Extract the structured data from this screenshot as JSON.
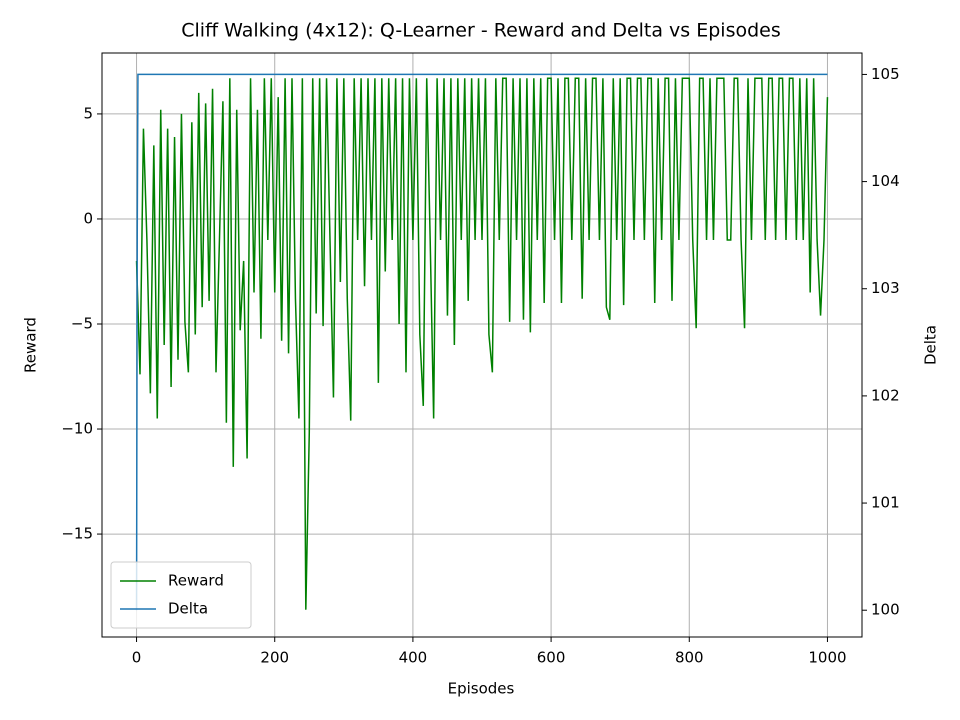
{
  "chart_data": {
    "type": "line",
    "title": "Cliff Walking (4x12): Q-Learner - Reward and Delta vs Episodes",
    "xlabel": "Episodes",
    "ylabel": "Reward",
    "y2label": "Delta",
    "xlim": [
      -50,
      1050
    ],
    "ylim": [
      -19.9,
      7.9
    ],
    "y2lim": [
      99.75,
      105.2
    ],
    "xticks": [
      0,
      200,
      400,
      600,
      800,
      1000
    ],
    "yticks": [
      {
        "value": -15,
        "label": "−15"
      },
      {
        "value": -10,
        "label": "−10"
      },
      {
        "value": -5,
        "label": "−5"
      },
      0,
      5
    ],
    "y2ticks": [
      100,
      101,
      102,
      103,
      104,
      105
    ],
    "grid": true,
    "legend": "lower left",
    "series": [
      {
        "name": "Reward",
        "color": "#008000",
        "x": [
          0,
          5,
          10,
          15,
          20,
          25,
          30,
          35,
          40,
          45,
          50,
          55,
          60,
          65,
          70,
          75,
          80,
          85,
          90,
          95,
          100,
          105,
          110,
          115,
          120,
          125,
          130,
          135,
          140,
          145,
          150,
          155,
          160,
          165,
          170,
          175,
          180,
          185,
          190,
          195,
          200,
          205,
          210,
          215,
          220,
          225,
          230,
          235,
          240,
          245,
          250,
          255,
          260,
          265,
          270,
          275,
          280,
          285,
          290,
          295,
          300,
          305,
          310,
          315,
          320,
          325,
          330,
          335,
          340,
          345,
          350,
          355,
          360,
          365,
          370,
          375,
          380,
          385,
          390,
          395,
          400,
          405,
          410,
          415,
          420,
          425,
          430,
          435,
          440,
          445,
          450,
          455,
          460,
          465,
          470,
          475,
          480,
          485,
          490,
          495,
          500,
          505,
          510,
          515,
          520,
          525,
          530,
          535,
          540,
          545,
          550,
          555,
          560,
          565,
          570,
          575,
          580,
          585,
          590,
          595,
          600,
          605,
          610,
          615,
          620,
          625,
          630,
          635,
          640,
          645,
          650,
          655,
          660,
          665,
          670,
          675,
          680,
          685,
          690,
          695,
          700,
          705,
          710,
          715,
          720,
          725,
          730,
          735,
          740,
          745,
          750,
          755,
          760,
          765,
          770,
          775,
          780,
          785,
          790,
          795,
          800,
          805,
          810,
          815,
          820,
          825,
          830,
          835,
          840,
          845,
          850,
          855,
          860,
          865,
          870,
          875,
          880,
          885,
          890,
          895,
          900,
          905,
          910,
          915,
          920,
          925,
          930,
          935,
          940,
          945,
          950,
          955,
          960,
          965,
          970,
          975,
          980,
          985,
          990,
          995,
          1000
        ],
        "values": [
          -2,
          -7.4,
          4.3,
          -1,
          -8.3,
          3.5,
          -9.5,
          5.2,
          -6,
          4.3,
          -8,
          3.9,
          -6.7,
          5,
          -4.9,
          -7.3,
          4.6,
          -5.5,
          6,
          -4.2,
          5.5,
          -3.9,
          6.2,
          -7.3,
          -1,
          5.6,
          -9.7,
          6.7,
          -11.8,
          5.2,
          -5.3,
          -2,
          -11.4,
          6.7,
          -3.5,
          5.2,
          -5.7,
          6.7,
          -1,
          6.7,
          -3.5,
          5.8,
          -5.8,
          6.7,
          -6.4,
          6.7,
          -3.8,
          -9.5,
          6.7,
          -18.6,
          -10.2,
          6.7,
          -4.5,
          6.7,
          -5.1,
          6.7,
          -1,
          -8.5,
          6.7,
          -3,
          6.7,
          -3.8,
          -9.6,
          6.7,
          -1,
          6.7,
          -3.2,
          6.7,
          -1,
          6.7,
          -7.8,
          6.7,
          -2.5,
          6.7,
          -1,
          6.7,
          -5,
          6.7,
          -7.3,
          6.7,
          -1,
          6.7,
          -5.5,
          -8.9,
          6.7,
          -1,
          -9.5,
          6.7,
          -1,
          6.7,
          -4.6,
          6.7,
          -6,
          6.7,
          -1,
          6.7,
          -3.9,
          6.7,
          -1,
          6.7,
          -1,
          6.7,
          -5.5,
          -7.3,
          6.7,
          -1,
          6.7,
          6.7,
          -4.9,
          6.7,
          -1,
          6.7,
          -4.8,
          6.7,
          -5.4,
          6.7,
          -1,
          6.7,
          -4,
          6.7,
          6.7,
          -1,
          6.7,
          -4,
          6.7,
          6.7,
          -1,
          6.7,
          6.7,
          -3.8,
          6.7,
          -1,
          6.7,
          6.7,
          -1,
          6.7,
          -4.2,
          -4.8,
          6.7,
          -1,
          6.7,
          -4.1,
          6.7,
          6.7,
          -1,
          6.7,
          6.7,
          -1,
          6.7,
          6.7,
          -4,
          6.7,
          -1,
          6.7,
          6.7,
          -3.9,
          6.7,
          -1,
          6.7,
          6.7,
          6.7,
          -1,
          -5.2,
          6.7,
          6.7,
          -1,
          6.7,
          -1,
          6.7,
          6.7,
          6.7,
          -1,
          -1,
          6.7,
          6.7,
          -1,
          -5.2,
          6.7,
          -1,
          6.7,
          6.7,
          6.7,
          -1,
          6.7,
          6.7,
          -1,
          6.7,
          6.7,
          -1,
          6.7,
          6.7,
          -1,
          6.7,
          -1,
          6.7,
          -3.5,
          6.7,
          -1,
          -4.6,
          -1,
          5.8
        ]
      },
      {
        "name": "Delta",
        "color": "#1f77b4",
        "axis": "y2",
        "x": [
          0,
          1,
          2,
          1000
        ],
        "values": [
          100,
          103.5,
          105,
          105
        ]
      }
    ]
  }
}
